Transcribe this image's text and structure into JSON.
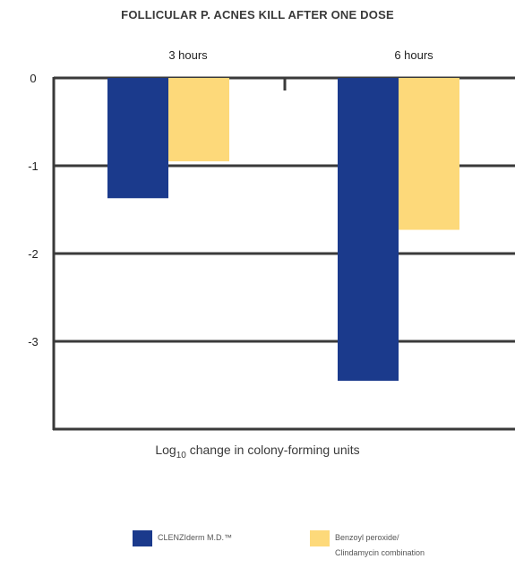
{
  "chart_data": {
    "type": "bar",
    "title": "FOLLICULAR P. ACNES KILL AFTER ONE DOSE",
    "categories": [
      "3 hours",
      "6 hours"
    ],
    "series": [
      {
        "name": "CLENZIderm M.D.™",
        "color": "#1b3a8c",
        "values": [
          -1.37,
          -3.45
        ]
      },
      {
        "name": "Benzoyl peroxide/ Clindamycin combination",
        "color": "#fdd97a",
        "values": [
          -0.95,
          -1.73
        ]
      }
    ],
    "ylabel_main": "Log",
    "ylabel_sub": "10",
    "ylabel_rest": " change in colony-forming units",
    "ylim": [
      -4,
      0
    ],
    "yticks": [
      "0",
      "-1",
      "-2",
      "-3"
    ],
    "grid": true,
    "legend_position": "bottom"
  }
}
